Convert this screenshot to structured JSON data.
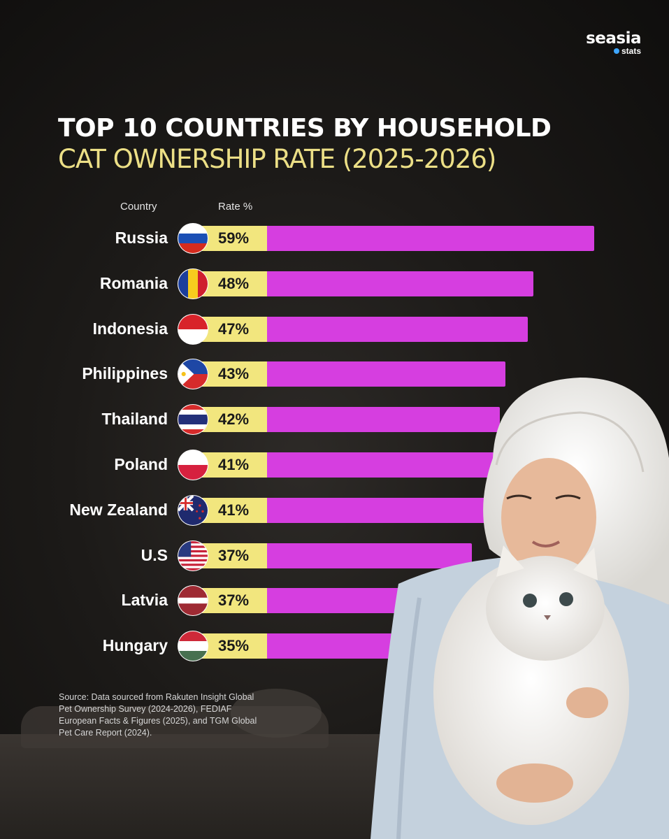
{
  "brand": {
    "name": "seasia",
    "sub": "stats",
    "dot_color": "#3ea6ff"
  },
  "title": {
    "line1": "TOP 10 COUNTRIES BY HOUSEHOLD",
    "line2": "CAT OWNERSHIP RATE (2025-2026)"
  },
  "colors": {
    "bar": "#d63ee0",
    "label_box": "#f2e67e",
    "subtitle": "#ecdf86"
  },
  "chart_data": {
    "type": "bar",
    "orientation": "horizontal",
    "xlabel": "Country",
    "ylabel": "Rate %",
    "categories": [
      "Russia",
      "Romania",
      "Indonesia",
      "Philippines",
      "Thailand",
      "Poland",
      "New Zealand",
      "U.S",
      "Latvia",
      "Hungary"
    ],
    "values": [
      59,
      48,
      47,
      43,
      42,
      41,
      41,
      37,
      37,
      35
    ],
    "value_labels": [
      "59%",
      "48%",
      "47%",
      "43%",
      "42%",
      "41%",
      "41%",
      "37%",
      "37%",
      "35%"
    ],
    "flags": [
      "russia-flag-icon",
      "romania-flag-icon",
      "indonesia-flag-icon",
      "philippines-flag-icon",
      "thailand-flag-icon",
      "poland-flag-icon",
      "new-zealand-flag-icon",
      "us-flag-icon",
      "latvia-flag-icon",
      "hungary-flag-icon"
    ],
    "grid": false
  },
  "source": "Source: Data sourced from Rakuten Insight Global Pet Ownership Survey (2024-2026), FEDIAF European Facts & Figures (2025), and TGM Global Pet Care Report (2024)."
}
